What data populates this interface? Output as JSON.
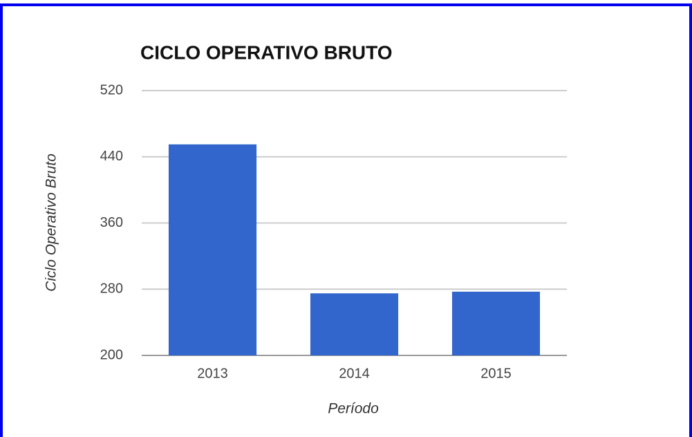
{
  "chart_data": {
    "type": "bar",
    "title": "CICLO OPERATIVO BRUTO",
    "x_label": "Período",
    "y_label": "Ciclo Operativo Bruto",
    "categories": [
      "2013",
      "2014",
      "2015"
    ],
    "values": [
      455,
      275,
      277
    ],
    "color": "#3366cc",
    "ylim": [
      200,
      520
    ],
    "yticks": [
      200,
      280,
      360,
      440,
      520
    ],
    "grid": true
  }
}
